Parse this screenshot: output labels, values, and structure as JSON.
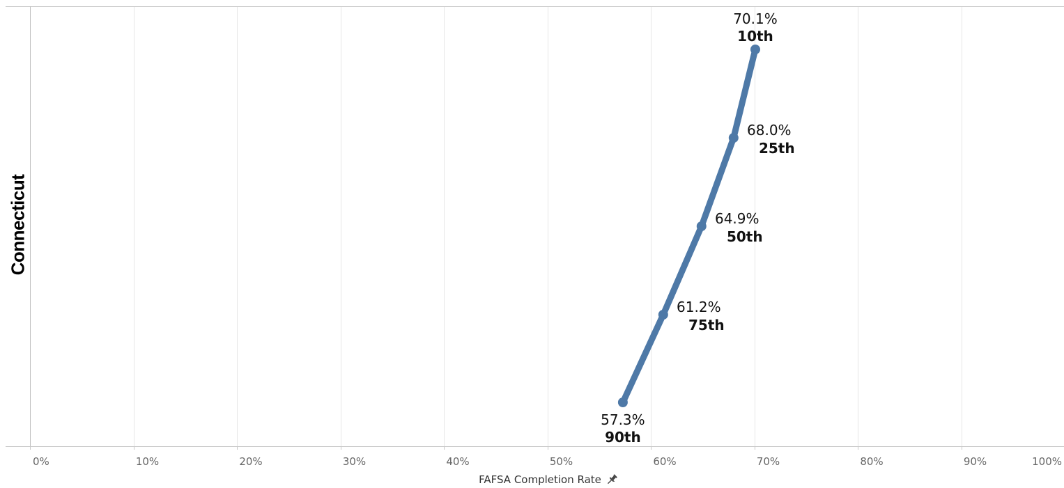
{
  "row_label": "Connecticut",
  "axis_title": "FAFSA Completion Rate",
  "axis_icon": "pin-icon",
  "colors": {
    "series": "#4e79a7",
    "grid": "#e6e6e6",
    "axis": "#c8c8c8"
  },
  "chart_data": {
    "type": "line",
    "xlabel": "FAFSA Completion Rate",
    "ylabel": "Connecticut",
    "xlim": [
      0,
      100
    ],
    "x_tick_labels": [
      "0%",
      "10%",
      "20%",
      "30%",
      "40%",
      "50%",
      "60%",
      "70%",
      "80%",
      "90%",
      "100%"
    ],
    "x_ticks": [
      0,
      10,
      20,
      30,
      40,
      50,
      60,
      70,
      80,
      90,
      100
    ],
    "grid": true,
    "series": [
      {
        "points": [
          {
            "value": 57.3,
            "value_label": "57.3%",
            "percentile": "90th"
          },
          {
            "value": 61.2,
            "value_label": "61.2%",
            "percentile": "75th"
          },
          {
            "value": 64.9,
            "value_label": "64.9%",
            "percentile": "50th"
          },
          {
            "value": 68.0,
            "value_label": "68.0%",
            "percentile": "25th"
          },
          {
            "value": 70.1,
            "value_label": "70.1%",
            "percentile": "10th"
          }
        ]
      }
    ]
  }
}
